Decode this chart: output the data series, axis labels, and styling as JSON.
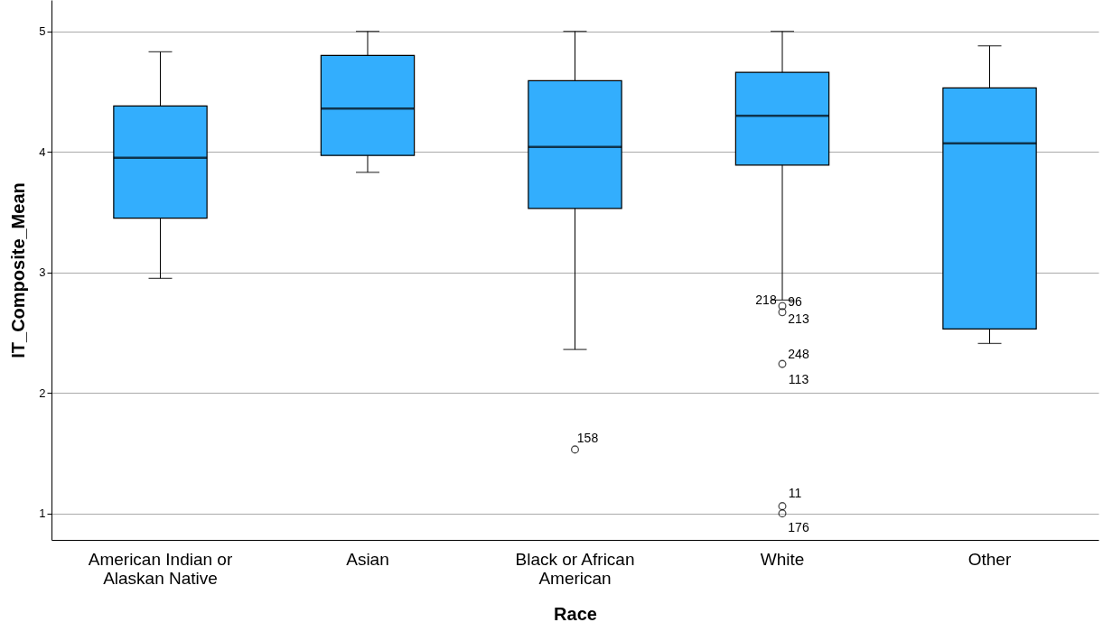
{
  "chart_data": {
    "type": "box",
    "xlabel": "Race",
    "ylabel": "IT_Composite_Mean",
    "categories": [
      "American Indian or Alaskan Native",
      "Asian",
      "Black or African American",
      "White",
      "Other"
    ],
    "series": [
      {
        "color": "#33aefd",
        "boxes": [
          {
            "low": 2.95,
            "q1": 3.45,
            "median": 3.95,
            "q3": 4.38,
            "high": 4.83
          },
          {
            "low": 3.83,
            "q1": 3.97,
            "median": 4.36,
            "q3": 4.8,
            "high": 5
          },
          {
            "low": 2.36,
            "q1": 3.53,
            "median": 4.04,
            "q3": 4.59,
            "high": 5,
            "outliers": [
              1.53
            ]
          },
          {
            "low": 2.77,
            "q1": 3.89,
            "median": 4.3,
            "q3": 4.66,
            "high": 5,
            "outliers": [
              2.72,
              2.67,
              2.24,
              1.06,
              1.0
            ]
          },
          {
            "low": 2.41,
            "q1": 2.53,
            "median": 4.07,
            "q3": 4.53,
            "high": 4.88
          }
        ]
      }
    ],
    "ylim": [
      0.78,
      5.26
    ],
    "yticks": [
      1,
      2,
      3,
      4,
      5
    ],
    "grid": "y",
    "annotations": [
      "158",
      "218",
      "96",
      "213",
      "248",
      "113",
      "11",
      "176"
    ]
  }
}
